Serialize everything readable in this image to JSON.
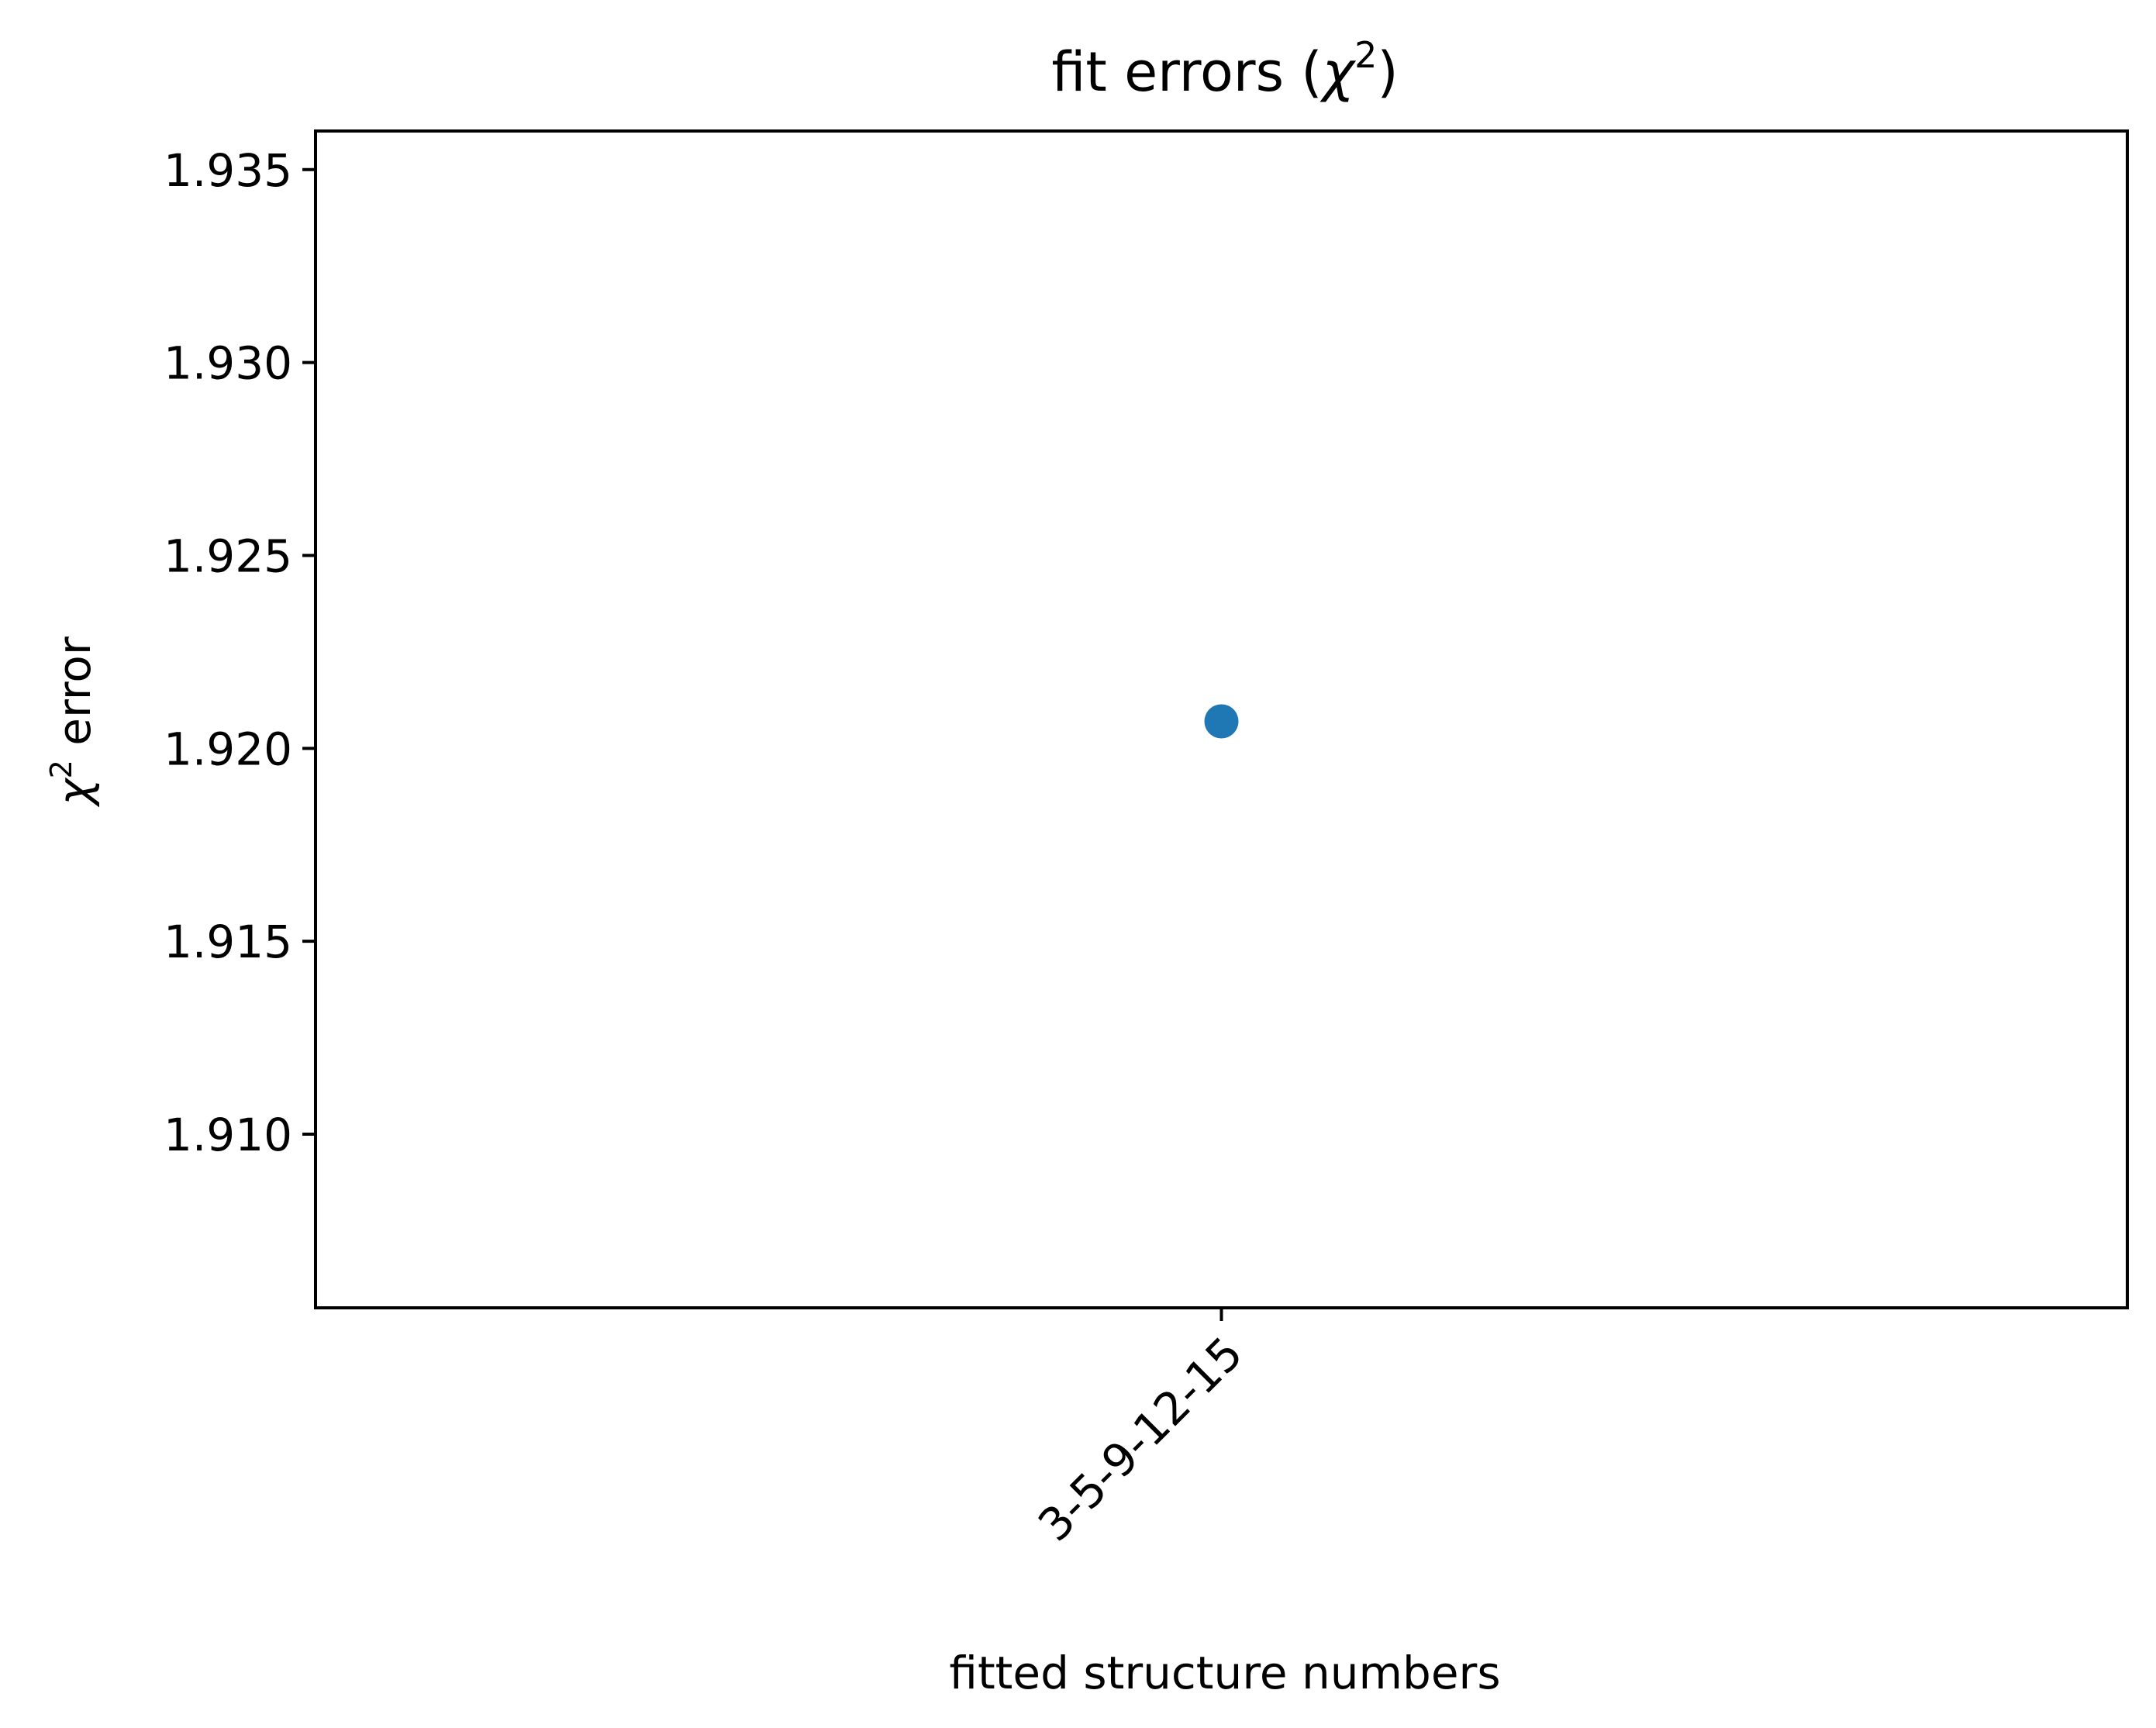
{
  "chart_data": {
    "type": "scatter",
    "title": "fit errors (χ2)",
    "title_parts": {
      "main": "fit errors (",
      "symbol": "χ",
      "sup": "2",
      "close": ")"
    },
    "xlabel": "fitted structure numbers",
    "ylabel": "χ2 error",
    "ylabel_parts": {
      "symbol": "χ",
      "sup": "2",
      "rest": " error"
    },
    "categories": [
      "3-5-9-12-15"
    ],
    "series": [
      {
        "values": [
          1.9207
        ],
        "color": "#1f77b4"
      }
    ],
    "ylim": [
      1.9055,
      1.936
    ],
    "yticks": [
      1.91,
      1.915,
      1.92,
      1.925,
      1.93,
      1.935
    ],
    "ytick_labels": [
      "1.910",
      "1.915",
      "1.920",
      "1.925",
      "1.930",
      "1.935"
    ],
    "xtick_rotation_deg": 45,
    "grid": false,
    "legend": "none"
  }
}
